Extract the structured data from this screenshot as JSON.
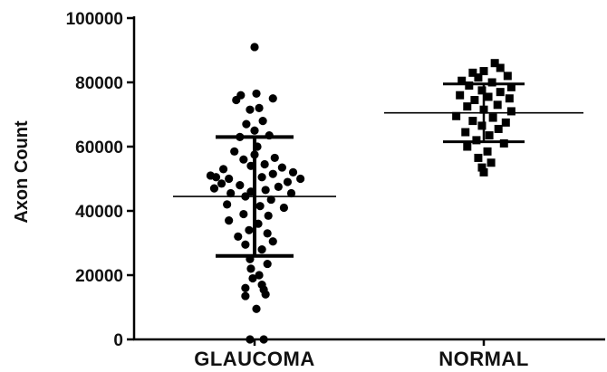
{
  "chart_data": {
    "type": "scatter",
    "title": "",
    "xlabel": "",
    "ylabel": "Axon Count",
    "ylim": [
      0,
      100000
    ],
    "yticks": [
      0,
      20000,
      40000,
      60000,
      80000,
      100000
    ],
    "ytick_labels": [
      "0",
      "20000",
      "40000",
      "60000",
      "80000",
      "100000"
    ],
    "grid": false,
    "categories": [
      "GLAUCOMA",
      "NORMAL"
    ],
    "series": [
      {
        "category": "GLAUCOMA",
        "marker": "circle",
        "color": "#000000",
        "mean": 44500,
        "sd_upper": 63000,
        "sd_lower": 26000,
        "points": [
          {
            "offset": 0.0,
            "y": 91000
          },
          {
            "offset": -0.15,
            "y": 76000
          },
          {
            "offset": 0.02,
            "y": 76500
          },
          {
            "offset": 0.2,
            "y": 75000
          },
          {
            "offset": -0.2,
            "y": 74500
          },
          {
            "offset": 0.05,
            "y": 72000
          },
          {
            "offset": -0.05,
            "y": 71500
          },
          {
            "offset": 0.09,
            "y": 68000
          },
          {
            "offset": -0.09,
            "y": 67000
          },
          {
            "offset": 0.0,
            "y": 65000
          },
          {
            "offset": 0.16,
            "y": 63500
          },
          {
            "offset": -0.16,
            "y": 63000
          },
          {
            "offset": 0.03,
            "y": 60000
          },
          {
            "offset": -0.22,
            "y": 58500
          },
          {
            "offset": 0.0,
            "y": 57500
          },
          {
            "offset": 0.22,
            "y": 56500
          },
          {
            "offset": -0.12,
            "y": 56000
          },
          {
            "offset": 0.11,
            "y": 54500
          },
          {
            "offset": -0.04,
            "y": 54000
          },
          {
            "offset": 0.3,
            "y": 53500
          },
          {
            "offset": -0.34,
            "y": 53000
          },
          {
            "offset": 0.42,
            "y": 52000
          },
          {
            "offset": 0.2,
            "y": 51500
          },
          {
            "offset": -0.48,
            "y": 51000
          },
          {
            "offset": -0.42,
            "y": 50500
          },
          {
            "offset": 0.5,
            "y": 50000
          },
          {
            "offset": -0.28,
            "y": 50000
          },
          {
            "offset": 0.08,
            "y": 50500
          },
          {
            "offset": -0.36,
            "y": 48500
          },
          {
            "offset": 0.36,
            "y": 49000
          },
          {
            "offset": -0.16,
            "y": 48000
          },
          {
            "offset": 0.26,
            "y": 47500
          },
          {
            "offset": -0.44,
            "y": 47000
          },
          {
            "offset": 0.12,
            "y": 46500
          },
          {
            "offset": -0.04,
            "y": 46000
          },
          {
            "offset": -0.26,
            "y": 45500
          },
          {
            "offset": 0.4,
            "y": 45500
          },
          {
            "offset": -0.1,
            "y": 44500
          },
          {
            "offset": 0.18,
            "y": 43500
          },
          {
            "offset": -0.3,
            "y": 42000
          },
          {
            "offset": 0.06,
            "y": 41500
          },
          {
            "offset": 0.32,
            "y": 41000
          },
          {
            "offset": -0.12,
            "y": 39000
          },
          {
            "offset": 0.15,
            "y": 38500
          },
          {
            "offset": -0.28,
            "y": 37000
          },
          {
            "offset": 0.04,
            "y": 36000
          },
          {
            "offset": -0.06,
            "y": 34000
          },
          {
            "offset": 0.14,
            "y": 33000
          },
          {
            "offset": -0.18,
            "y": 32000
          },
          {
            "offset": 0.2,
            "y": 30500
          },
          {
            "offset": -0.1,
            "y": 29500
          },
          {
            "offset": 0.08,
            "y": 28000
          },
          {
            "offset": -0.05,
            "y": 25000
          },
          {
            "offset": 0.14,
            "y": 23500
          },
          {
            "offset": -0.04,
            "y": 22000
          },
          {
            "offset": 0.05,
            "y": 20000
          },
          {
            "offset": -0.02,
            "y": 19000
          },
          {
            "offset": 0.08,
            "y": 17000
          },
          {
            "offset": -0.1,
            "y": 16000
          },
          {
            "offset": 0.1,
            "y": 15500
          },
          {
            "offset": 0.12,
            "y": 14000
          },
          {
            "offset": -0.1,
            "y": 13500
          },
          {
            "offset": 0.02,
            "y": 9500
          },
          {
            "offset": -0.05,
            "y": 0
          },
          {
            "offset": 0.1,
            "y": 0
          }
        ]
      },
      {
        "category": "NORMAL",
        "marker": "square",
        "color": "#000000",
        "mean": 70500,
        "sd_upper": 79500,
        "sd_lower": 61500,
        "points": [
          {
            "offset": 0.12,
            "y": 86000
          },
          {
            "offset": 0.18,
            "y": 84500
          },
          {
            "offset": 0.0,
            "y": 83500
          },
          {
            "offset": -0.12,
            "y": 83000
          },
          {
            "offset": 0.26,
            "y": 82000
          },
          {
            "offset": -0.06,
            "y": 81500
          },
          {
            "offset": -0.24,
            "y": 80500
          },
          {
            "offset": 0.09,
            "y": 80000
          },
          {
            "offset": -0.16,
            "y": 79000
          },
          {
            "offset": 0.3,
            "y": 78500
          },
          {
            "offset": -0.02,
            "y": 77500
          },
          {
            "offset": 0.18,
            "y": 77000
          },
          {
            "offset": -0.26,
            "y": 76000
          },
          {
            "offset": 0.05,
            "y": 75500
          },
          {
            "offset": 0.28,
            "y": 75000
          },
          {
            "offset": -0.1,
            "y": 74500
          },
          {
            "offset": 0.15,
            "y": 73000
          },
          {
            "offset": -0.18,
            "y": 72500
          },
          {
            "offset": 0.0,
            "y": 71500
          },
          {
            "offset": 0.3,
            "y": 71000
          },
          {
            "offset": -0.3,
            "y": 69500
          },
          {
            "offset": 0.1,
            "y": 69000
          },
          {
            "offset": -0.12,
            "y": 68000
          },
          {
            "offset": 0.24,
            "y": 67500
          },
          {
            "offset": -0.02,
            "y": 66500
          },
          {
            "offset": 0.16,
            "y": 65500
          },
          {
            "offset": -0.2,
            "y": 64500
          },
          {
            "offset": 0.06,
            "y": 63500
          },
          {
            "offset": -0.08,
            "y": 62000
          },
          {
            "offset": 0.22,
            "y": 61000
          },
          {
            "offset": -0.18,
            "y": 60000
          },
          {
            "offset": 0.04,
            "y": 58500
          },
          {
            "offset": -0.06,
            "y": 56500
          },
          {
            "offset": 0.08,
            "y": 55000
          },
          {
            "offset": -0.02,
            "y": 53500
          },
          {
            "offset": 0.0,
            "y": 52000
          }
        ]
      }
    ]
  }
}
